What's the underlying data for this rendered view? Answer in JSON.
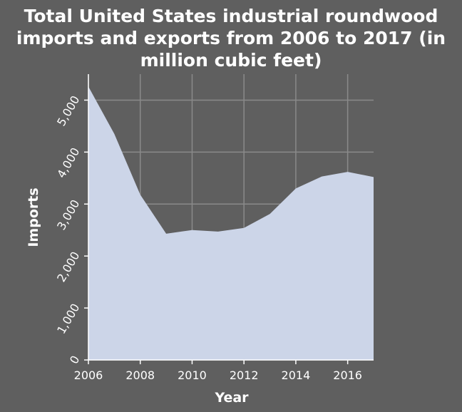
{
  "chart_data": {
    "type": "area",
    "title_lines": [
      "Total United States industrial roundwood",
      "imports and exports from 2006 to 2017 (in",
      "million cubic feet)"
    ],
    "xlabel": "Year",
    "ylabel": "Imports",
    "x": [
      2006,
      2007,
      2008,
      2009,
      2010,
      2011,
      2012,
      2013,
      2014,
      2015,
      2016,
      2017
    ],
    "series": [
      {
        "values": [
          5260,
          4350,
          3180,
          2430,
          2500,
          2470,
          2540,
          2810,
          3300,
          3530,
          3620,
          3520
        ]
      }
    ],
    "xlim": [
      2006,
      2017
    ],
    "ylim": [
      0,
      5500
    ],
    "x_ticks": [
      2006,
      2008,
      2010,
      2012,
      2014,
      2016
    ],
    "x_tick_labels": [
      "2006",
      "2008",
      "2010",
      "2012",
      "2014",
      "2016"
    ],
    "y_ticks": [
      0,
      1000,
      2000,
      3000,
      4000,
      5000
    ],
    "y_tick_labels": [
      "0",
      "1,000",
      "2,000",
      "3,000",
      "4,000",
      "5,000"
    ],
    "grid": true,
    "colors": {
      "fill": "#ccd5e8",
      "background": "#5f5f5f",
      "grid": "#8a8a8a",
      "text": "#ffffff"
    }
  }
}
